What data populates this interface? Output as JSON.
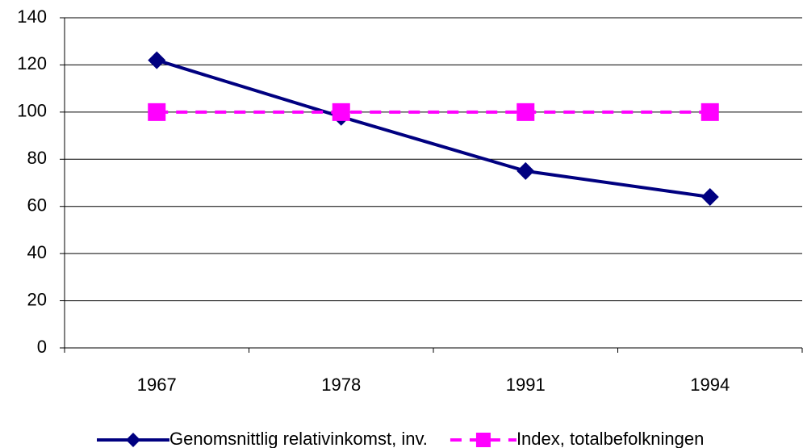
{
  "chart_data": {
    "type": "line",
    "categories": [
      "1967",
      "1978",
      "1991",
      "1994"
    ],
    "series": [
      {
        "name": "Genomsnittlig relativinkomst, inv.",
        "color": "#000080",
        "marker": "diamond",
        "values": [
          122,
          98,
          75,
          64
        ]
      },
      {
        "name": "Index, totalbefolkningen",
        "color": "#ff00ff",
        "marker": "square",
        "dashed": true,
        "values": [
          100,
          100,
          100,
          100
        ]
      }
    ],
    "ylim": [
      0,
      140
    ],
    "yticks": [
      0,
      20,
      40,
      60,
      80,
      100,
      120,
      140
    ],
    "grid": true,
    "legend": "bottom"
  }
}
